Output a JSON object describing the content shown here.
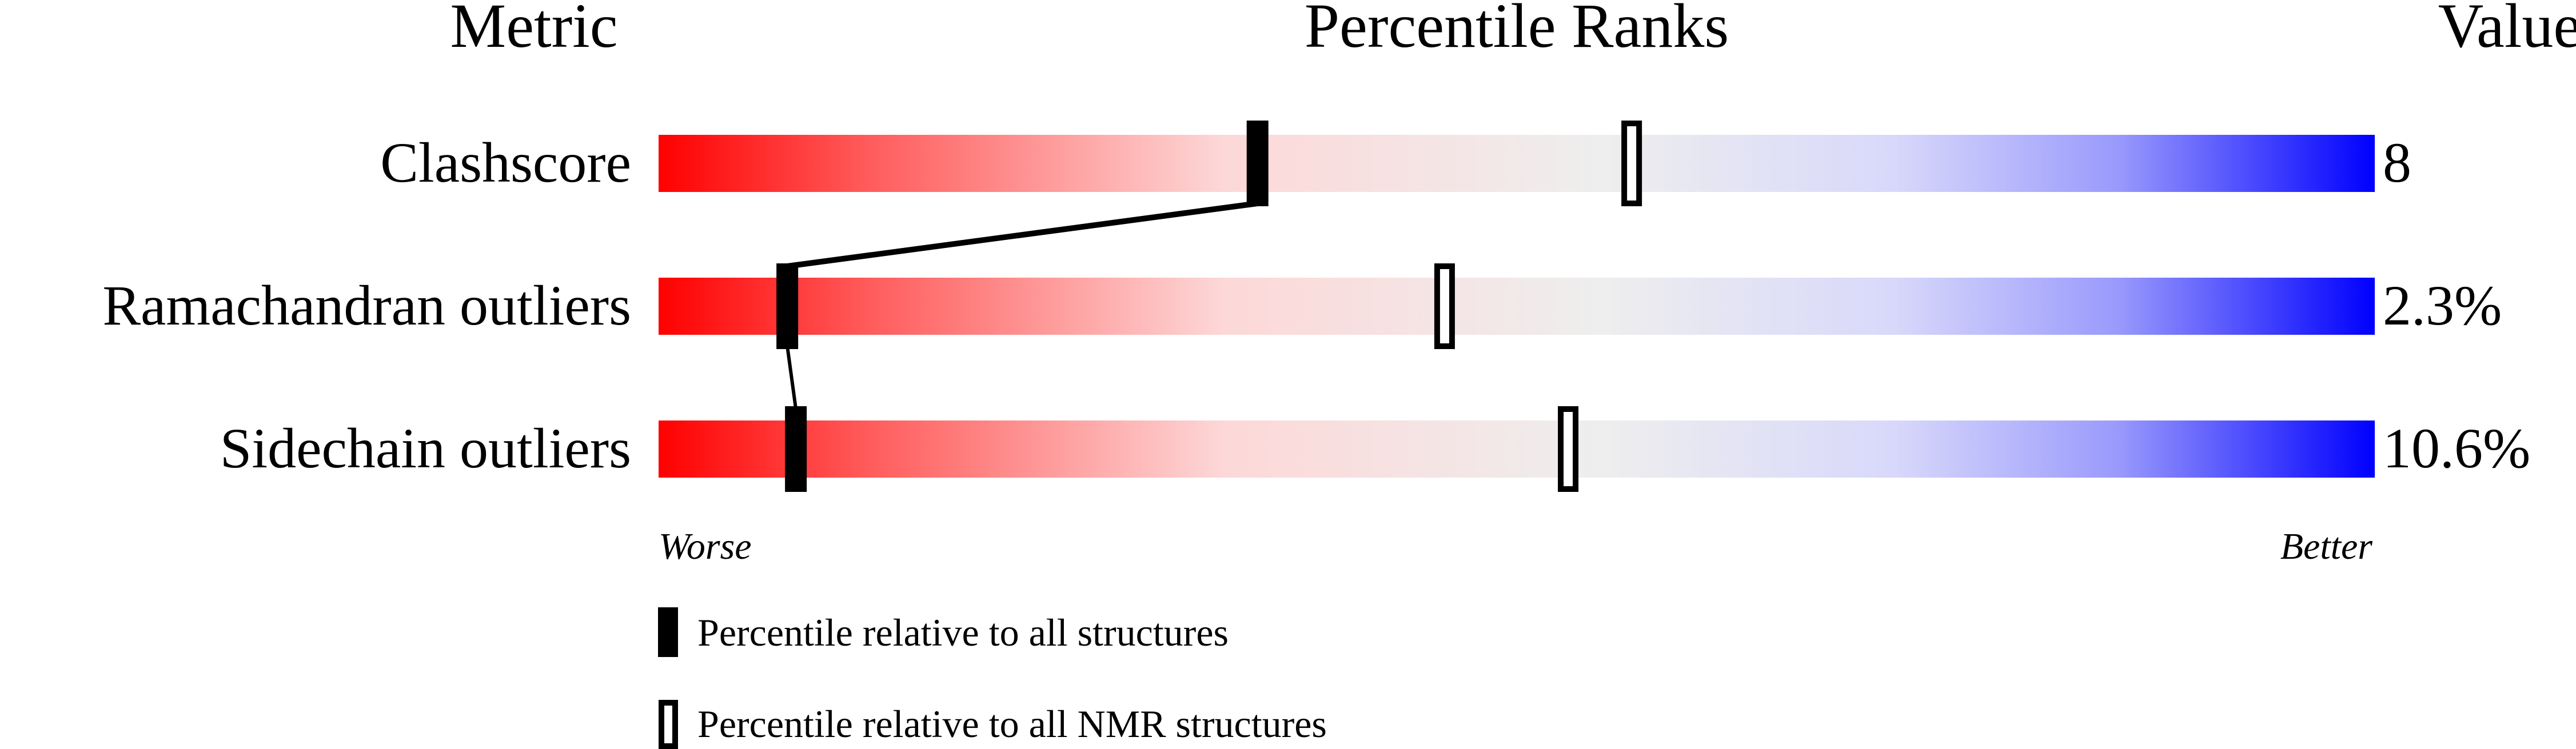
{
  "chart_data": {
    "type": "percentile-slider",
    "headers": {
      "metric": "Metric",
      "ranks": "Percentile Ranks",
      "value": "Value"
    },
    "xlim": [
      0,
      100
    ],
    "axis_labels": {
      "left": "Worse",
      "right": "Better"
    },
    "gradient_colors": [
      "#ff0000",
      "#fcd9d9",
      "#eeeeee",
      "#dcdcfb",
      "#0000ff"
    ],
    "rows": [
      {
        "metric": "Clashscore",
        "value": "8",
        "percentile_all": 34.9,
        "percentile_nmr": 56.7
      },
      {
        "metric": "Ramachandran outliers",
        "value": "2.3%",
        "percentile_all": 7.5,
        "percentile_nmr": 45.8
      },
      {
        "metric": "Sidechain outliers",
        "value": "10.6%",
        "percentile_all": 8.0,
        "percentile_nmr": 53.0
      }
    ],
    "legend": {
      "all": "Percentile relative to all structures",
      "nmr": "Percentile relative to all NMR structures"
    }
  }
}
